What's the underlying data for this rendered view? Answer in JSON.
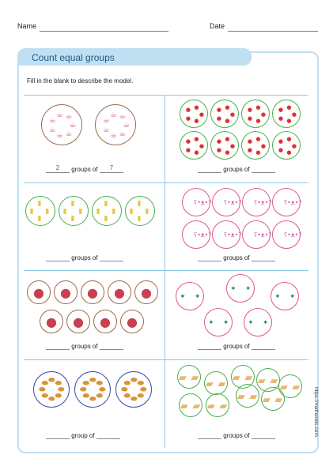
{
  "header": {
    "name_label": "Name",
    "date_label": "Date"
  },
  "title": "Count equal groups",
  "instruction": "Fill in the blank to describe the model.",
  "problems": [
    {
      "id": "p1",
      "items_per_group": 7,
      "group_count": 2,
      "item": "teacup",
      "answer_groups": "2",
      "answer_each": "7",
      "text_mid": "groups of"
    },
    {
      "id": "p2",
      "items_per_group": 5,
      "group_count": 8,
      "item": "apple",
      "answer_groups": "",
      "answer_each": "",
      "text_mid": "groups of"
    },
    {
      "id": "p3",
      "items_per_group": 4,
      "group_count": 4,
      "item": "milk-carton",
      "answer_groups": "",
      "answer_each": "",
      "text_mid": "groups of"
    },
    {
      "id": "p4",
      "items_per_group": 1,
      "group_count": 8,
      "item": "teddy-bear",
      "answer_groups": "",
      "answer_each": "",
      "text_mid": "groups of"
    },
    {
      "id": "p5",
      "items_per_group": 1,
      "group_count": 9,
      "item": "meat-slice",
      "answer_groups": "",
      "answer_each": "",
      "text_mid": "groups of"
    },
    {
      "id": "p6",
      "items_per_group": 2,
      "group_count": 6,
      "item": "candy",
      "answer_groups": "",
      "answer_each": "",
      "text_mid": "groups of"
    },
    {
      "id": "p7",
      "items_per_group": 8,
      "group_count": 3,
      "item": "cookie",
      "answer_groups": "",
      "answer_each": "",
      "text_mid": "group of"
    },
    {
      "id": "p8",
      "items_per_group": 2,
      "group_count": 9,
      "item": "sandwich",
      "answer_groups": "",
      "answer_each": "",
      "text_mid": "groups of"
    }
  ],
  "side_url": "https://mathskids.com",
  "colors": {
    "accent": "#bfe0f2",
    "title_text": "#1a5b87",
    "divider": "#8ec8e8",
    "answer": "#c0392b"
  }
}
